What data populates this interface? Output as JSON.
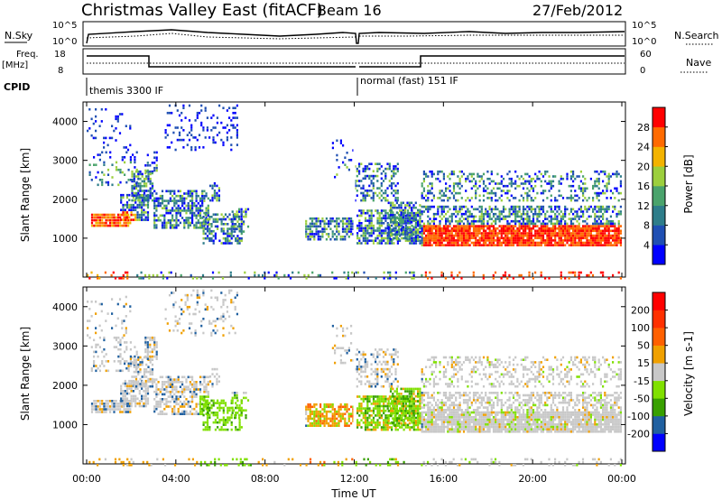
{
  "header": {
    "title": "Christmas Valley East (fitACF)",
    "beam": "Beam 16",
    "date": "27/Feb/2012"
  },
  "strip_labels": {
    "nsky": "N.Sky",
    "nsearch": "N.Search",
    "freq": "Freq.",
    "freq_unit": "[MHz]",
    "nave": "Nave",
    "cpid": "CPID",
    "left_exp": "10^5",
    "left_zero": "10^0",
    "right_exp": "10^5",
    "right_zero": "10^0",
    "freq_ticks": [
      "18",
      "8"
    ],
    "nave_ticks": [
      "60",
      "0"
    ],
    "program1": "themis 3300 IF",
    "program2": "normal (fast) 151 IF"
  },
  "chart_data": [
    {
      "type": "heatmap",
      "name": "power",
      "ylabel": "Slant Range [km]",
      "ylim": [
        0,
        4500
      ],
      "yticks": [
        "4000",
        "3000",
        "2000",
        "1000"
      ],
      "xlim": [
        0,
        24
      ],
      "xlabel": "Time UT",
      "colorbar": {
        "label": "Power [dB]",
        "ticks": [
          "28",
          "24",
          "20",
          "16",
          "12",
          "8",
          "4"
        ],
        "colors": [
          "#0000ff",
          "#1f4fb3",
          "#2e7d8a",
          "#4aa36c",
          "#9ccf3d",
          "#f3b300",
          "#ff6a00",
          "#ff0000"
        ]
      }
    },
    {
      "type": "heatmap",
      "name": "velocity",
      "ylabel": "Slant Range [km]",
      "ylim": [
        0,
        4500
      ],
      "yticks": [
        "4000",
        "3000",
        "2000",
        "1000"
      ],
      "xlim": [
        0,
        24
      ],
      "xlabel": "Time UT",
      "colorbar": {
        "label": "Velocity [m s-1]",
        "ticks": [
          "200",
          "100",
          "50",
          "15",
          "-15",
          "-50",
          "-100",
          "-200"
        ],
        "colors": [
          "#0000ff",
          "#2060a0",
          "#38a000",
          "#80e000",
          "#c8c8c8",
          "#f0a000",
          "#ff6000",
          "#ff3000",
          "#ff0000"
        ]
      }
    }
  ],
  "time_axis": {
    "ticks": [
      "00:00",
      "04:00",
      "08:00",
      "12:00",
      "16:00",
      "20:00",
      "00:00"
    ],
    "label": "Time UT"
  }
}
